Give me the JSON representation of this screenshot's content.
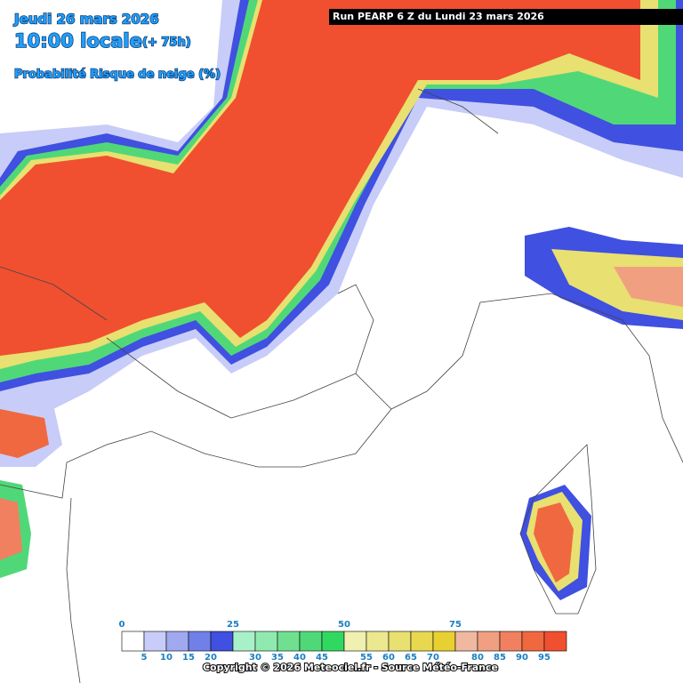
{
  "header": {
    "date": "Jeudi 26 mars 2026",
    "time": "10:00 locale",
    "lead": "(+ 75h)",
    "parameter": "Probabilité Risque de neige (%)",
    "run": "Run PEARP 6 Z du Lundi 23 mars 2026"
  },
  "legend": {
    "labels": [
      "0",
      "5",
      "10",
      "15",
      "20",
      "25",
      "30",
      "35",
      "40",
      "45",
      "50",
      "55",
      "60",
      "65",
      "70",
      "75",
      "80",
      "85",
      "90",
      "95"
    ],
    "colors": [
      "#ffffff",
      "#c8ccf8",
      "#a0a8f0",
      "#7080e8",
      "#4050e0",
      "#a8f0c8",
      "#90eab0",
      "#70e090",
      "#50d878",
      "#30d860",
      "#f0f0b0",
      "#ece890",
      "#e8e070",
      "#e8d850",
      "#e8d030",
      "#f0b8a0",
      "#f0a080",
      "#f08060",
      "#f06840",
      "#f05030"
    ]
  },
  "footer": {
    "copyright": "Copyright © 2026 Meteociel.fr - Source Météo-France"
  }
}
